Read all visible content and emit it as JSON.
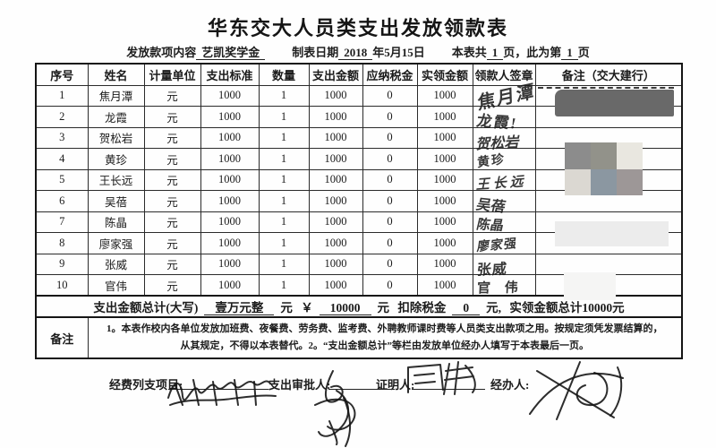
{
  "page": {
    "title": "华东交大人员类支出发放领款表"
  },
  "meta": {
    "content_label": "发放款项内容",
    "content_value": "艺凯奖学金",
    "date_label": "制表日期",
    "date_year": "2018",
    "date_suffix": "年5月15日",
    "pages_prefix": "本表共",
    "pages_total": "1",
    "pages_mid": "页，此为第",
    "pages_num": "1",
    "pages_suffix": "页"
  },
  "table": {
    "headers": [
      "序号",
      "姓名",
      "计量单位",
      "支出标准",
      "数量",
      "支出金额",
      "应纳税金",
      "实领金额",
      "领款人签章",
      "备注（交大建行）"
    ],
    "rows": [
      {
        "seq": "1",
        "name": "焦月潭",
        "unit": "元",
        "standard": "1000",
        "qty": "1",
        "amount": "1000",
        "tax": "0",
        "actual": "1000",
        "signature": "焦月潭"
      },
      {
        "seq": "2",
        "name": "龙霞",
        "unit": "元",
        "standard": "1000",
        "qty": "1",
        "amount": "1000",
        "tax": "0",
        "actual": "1000",
        "signature": "龙霞!"
      },
      {
        "seq": "3",
        "name": "贺松岩",
        "unit": "元",
        "standard": "1000",
        "qty": "1",
        "amount": "1000",
        "tax": "0",
        "actual": "1000",
        "signature": "贺松岩"
      },
      {
        "seq": "4",
        "name": "黄珍",
        "unit": "元",
        "standard": "1000",
        "qty": "1",
        "amount": "1000",
        "tax": "0",
        "actual": "1000",
        "signature": "黄珍"
      },
      {
        "seq": "5",
        "name": "王长远",
        "unit": "元",
        "standard": "1000",
        "qty": "1",
        "amount": "1000",
        "tax": "0",
        "actual": "1000",
        "signature": "王长远"
      },
      {
        "seq": "6",
        "name": "吴蓓",
        "unit": "元",
        "standard": "1000",
        "qty": "1",
        "amount": "1000",
        "tax": "0",
        "actual": "1000",
        "signature": "吴蓓"
      },
      {
        "seq": "7",
        "name": "陈晶",
        "unit": "元",
        "standard": "1000",
        "qty": "1",
        "amount": "1000",
        "tax": "0",
        "actual": "1000",
        "signature": "陈晶"
      },
      {
        "seq": "8",
        "name": "廖家强",
        "unit": "元",
        "standard": "1000",
        "qty": "1",
        "amount": "1000",
        "tax": "0",
        "actual": "1000",
        "signature": "廖家强"
      },
      {
        "seq": "9",
        "name": "张威",
        "unit": "元",
        "standard": "1000",
        "qty": "1",
        "amount": "1000",
        "tax": "0",
        "actual": "1000",
        "signature": "张威"
      },
      {
        "seq": "10",
        "name": "官伟",
        "unit": "元",
        "standard": "1000",
        "qty": "1",
        "amount": "1000",
        "tax": "0",
        "actual": "1000",
        "signature": "官 伟"
      }
    ],
    "total": {
      "label": "支出金额总计(大写)",
      "amount_cn": "壹万元整",
      "unit1": "元",
      "currency": "￥",
      "amount": "10000",
      "unit2": "元",
      "tax_label": "扣除税金",
      "tax": "0",
      "unit3": "元,",
      "actual_total": "实领金额总计10000元"
    },
    "remark": {
      "label": "备注",
      "line1": "1。本表作校内各单位发放加班费、夜餐费、劳务费、监考费、外聘教师课时费等人员类支出款项之用。按规定须凭发票结算的，",
      "line2": "从其规定，不得以本表替代。2。“支出金额总计”等栏由发放单位经办人填写于本表最后一页。"
    }
  },
  "footer": {
    "project_label": "经费列支项目:",
    "approver_label": "支出审批人:",
    "witness_label": "证明人:",
    "handler_label": "经办人:"
  },
  "privacy": {
    "block_color_dark": "#696969",
    "block_color_light": "#ececec",
    "block_color_faint": "#f5f5f4",
    "mosaic_colors": [
      "#8c8c8c",
      "#92928a",
      "#e9e7e0",
      "#dbd8d2",
      "#8b97a1",
      "#9d9797"
    ]
  }
}
